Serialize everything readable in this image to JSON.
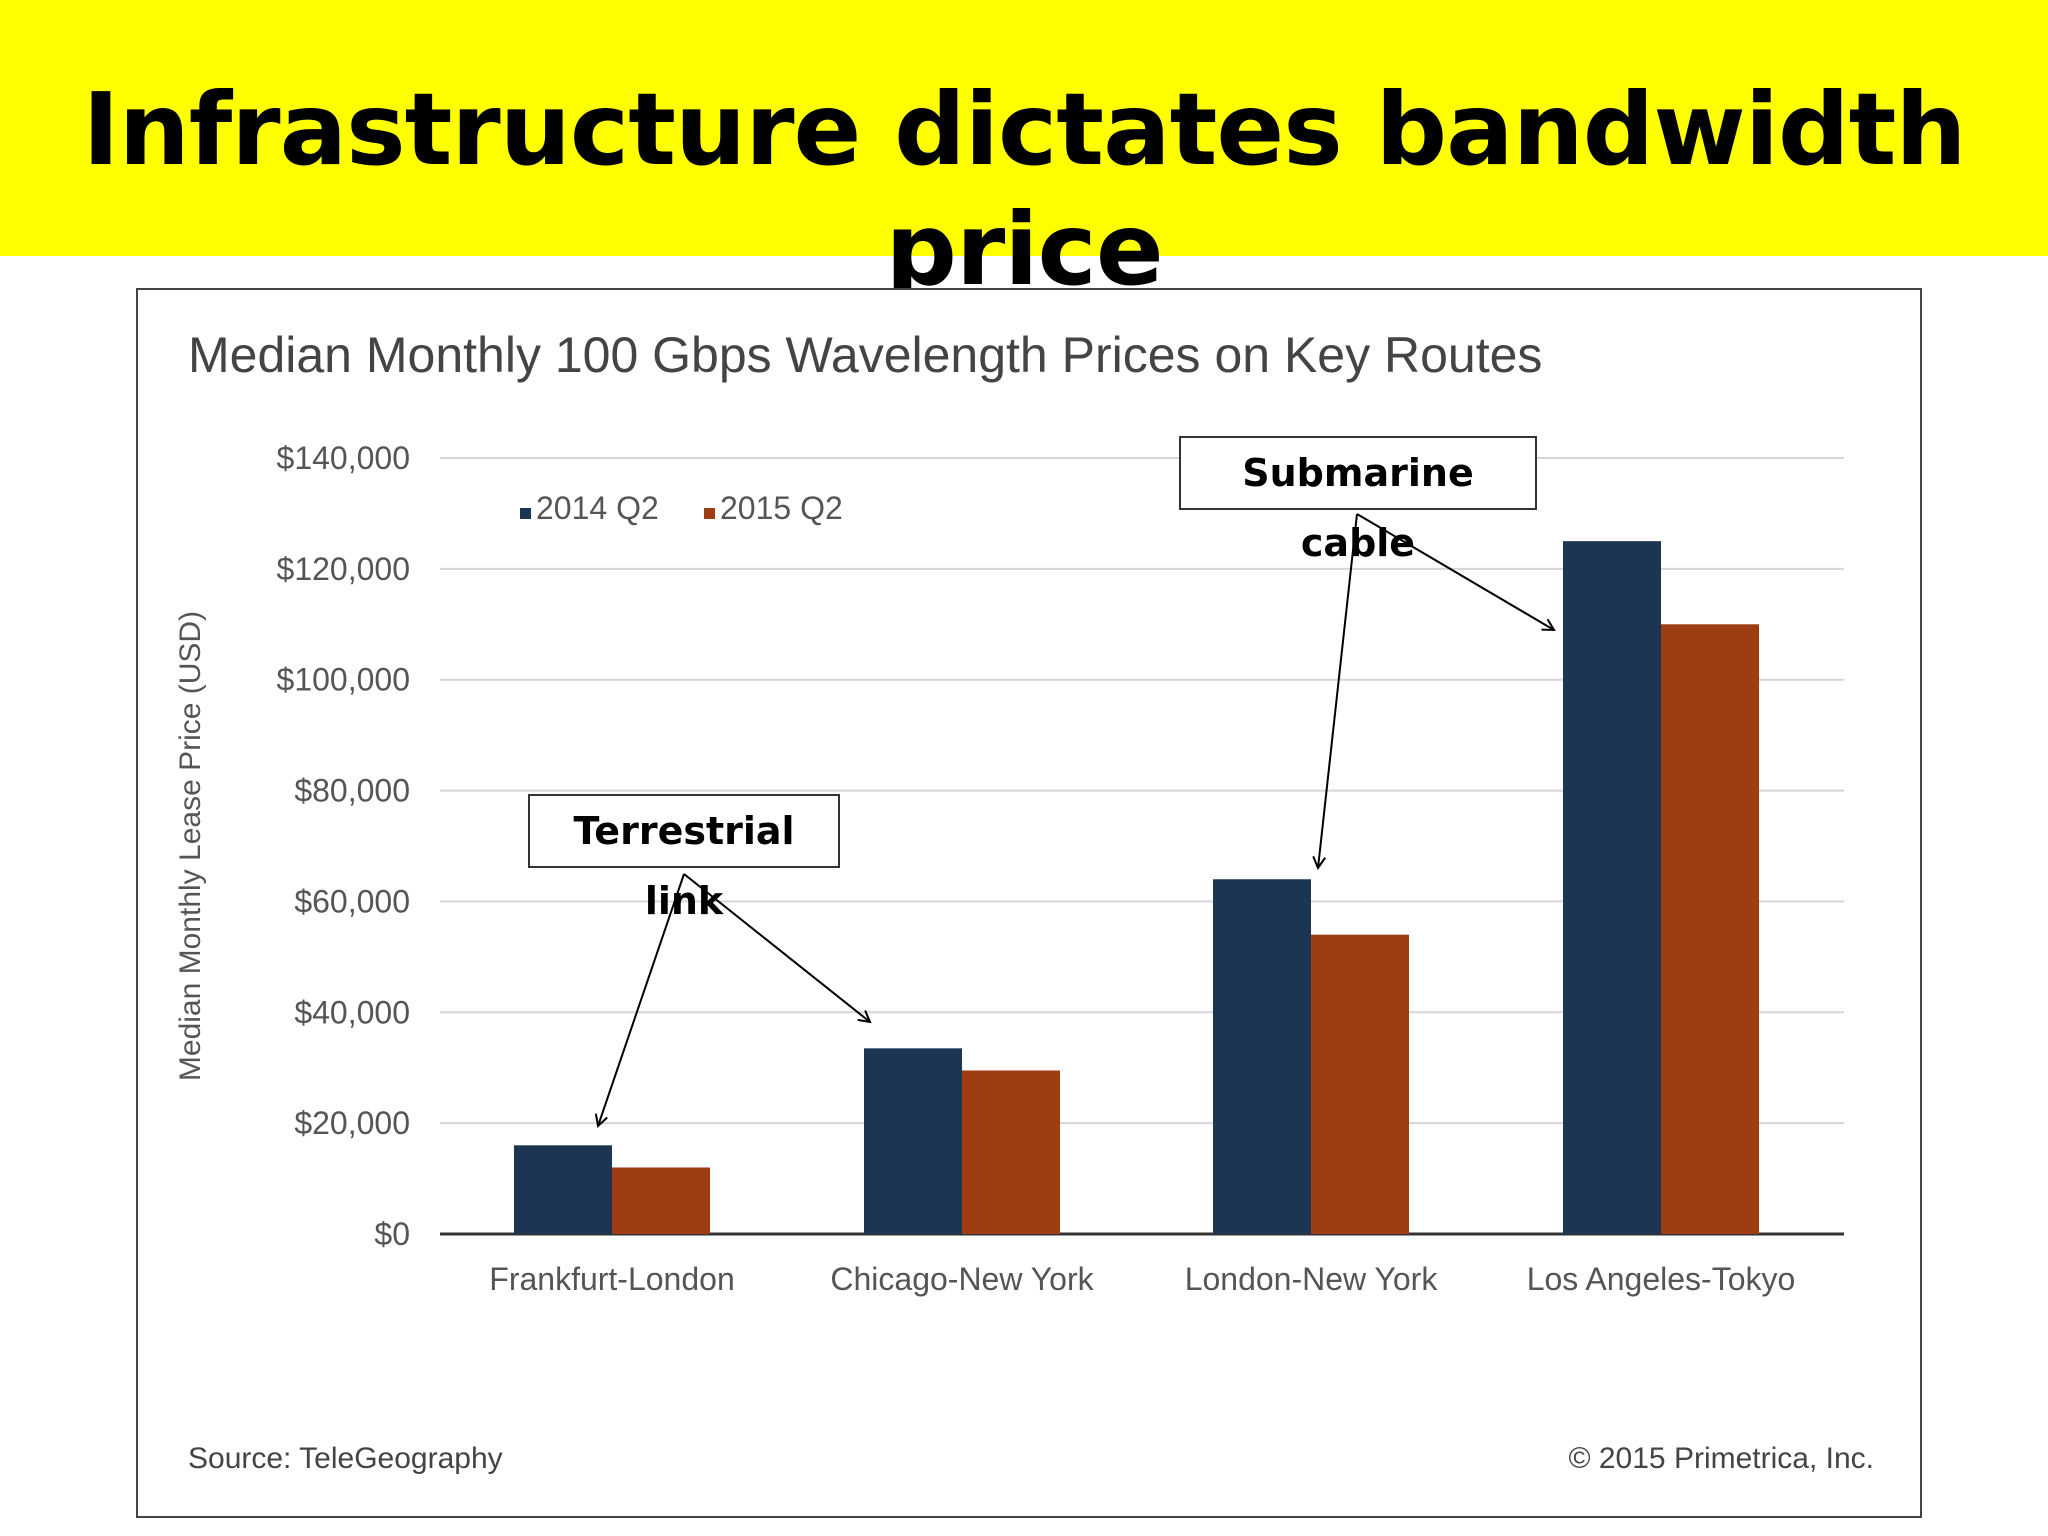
{
  "slide": {
    "title": "Infrastructure dictates bandwidth price",
    "banner_color": "#ffff00"
  },
  "callouts": {
    "terrestrial": "Terrestrial link",
    "submarine": "Submarine cable"
  },
  "chart_data": {
    "type": "bar",
    "title": "Median Monthly 100 Gbps Wavelength Prices on Key Routes",
    "xlabel": "",
    "ylabel": "Median Monthly Lease Price (USD)",
    "categories": [
      "Frankfurt-London",
      "Chicago-New York",
      "London-New York",
      "Los Angeles-Tokyo"
    ],
    "series": [
      {
        "name": "2014 Q2",
        "color": "#1c3553",
        "values": [
          16000,
          33500,
          64000,
          125000
        ]
      },
      {
        "name": "2015 Q2",
        "color": "#9e3d12",
        "values": [
          12000,
          29500,
          54000,
          110000
        ]
      }
    ],
    "ylim": [
      0,
      140000
    ],
    "yticks": [
      0,
      20000,
      40000,
      60000,
      80000,
      100000,
      120000,
      140000
    ],
    "ytick_labels": [
      "$0",
      "$20,000",
      "$40,000",
      "$60,000",
      "$80,000",
      "$100,000",
      "$120,000",
      "$140,000"
    ],
    "grid": true,
    "legend": "top-left",
    "source": "Source: TeleGeography",
    "copyright": "© 2015 Primetrica, Inc."
  }
}
